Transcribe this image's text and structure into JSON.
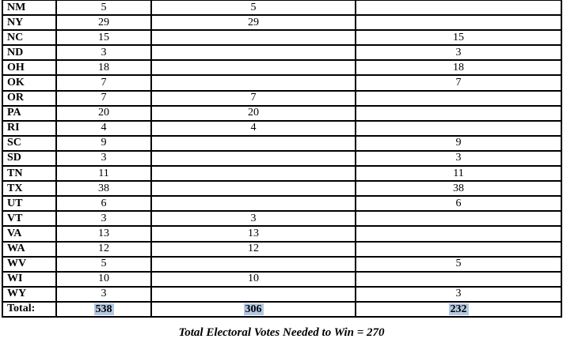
{
  "table": {
    "rows": [
      {
        "state": "NM",
        "total_votes": "5",
        "candidate_a_votes": "5",
        "candidate_b_votes": ""
      },
      {
        "state": "NY",
        "total_votes": "29",
        "candidate_a_votes": "29",
        "candidate_b_votes": ""
      },
      {
        "state": "NC",
        "total_votes": "15",
        "candidate_a_votes": "",
        "candidate_b_votes": "15"
      },
      {
        "state": "ND",
        "total_votes": "3",
        "candidate_a_votes": "",
        "candidate_b_votes": "3"
      },
      {
        "state": "OH",
        "total_votes": "18",
        "candidate_a_votes": "",
        "candidate_b_votes": "18"
      },
      {
        "state": "OK",
        "total_votes": "7",
        "candidate_a_votes": "",
        "candidate_b_votes": "7"
      },
      {
        "state": "OR",
        "total_votes": "7",
        "candidate_a_votes": "7",
        "candidate_b_votes": ""
      },
      {
        "state": "PA",
        "total_votes": "20",
        "candidate_a_votes": "20",
        "candidate_b_votes": ""
      },
      {
        "state": "RI",
        "total_votes": "4",
        "candidate_a_votes": "4",
        "candidate_b_votes": ""
      },
      {
        "state": "SC",
        "total_votes": "9",
        "candidate_a_votes": "",
        "candidate_b_votes": "9"
      },
      {
        "state": "SD",
        "total_votes": "3",
        "candidate_a_votes": "",
        "candidate_b_votes": "3"
      },
      {
        "state": "TN",
        "total_votes": "11",
        "candidate_a_votes": "",
        "candidate_b_votes": "11"
      },
      {
        "state": "TX",
        "total_votes": "38",
        "candidate_a_votes": "",
        "candidate_b_votes": "38"
      },
      {
        "state": "UT",
        "total_votes": "6",
        "candidate_a_votes": "",
        "candidate_b_votes": "6"
      },
      {
        "state": "VT",
        "total_votes": "3",
        "candidate_a_votes": "3",
        "candidate_b_votes": ""
      },
      {
        "state": "VA",
        "total_votes": "13",
        "candidate_a_votes": "13",
        "candidate_b_votes": ""
      },
      {
        "state": "WA",
        "total_votes": "12",
        "candidate_a_votes": "12",
        "candidate_b_votes": ""
      },
      {
        "state": "WV",
        "total_votes": "5",
        "candidate_a_votes": "",
        "candidate_b_votes": "5"
      },
      {
        "state": "WI",
        "total_votes": "10",
        "candidate_a_votes": "10",
        "candidate_b_votes": ""
      },
      {
        "state": "WY",
        "total_votes": "3",
        "candidate_a_votes": "",
        "candidate_b_votes": "3"
      }
    ],
    "total_row": {
      "label": "Total:",
      "total_votes": "538",
      "candidate_a_votes": "306",
      "candidate_b_votes": "232"
    }
  },
  "footer": {
    "note": "Total Electoral Votes Needed to Win = 270"
  },
  "colors": {
    "grid_line": "#000000",
    "text": "#000000",
    "total_highlight": "#b3c8e2",
    "background": "#ffffff"
  }
}
